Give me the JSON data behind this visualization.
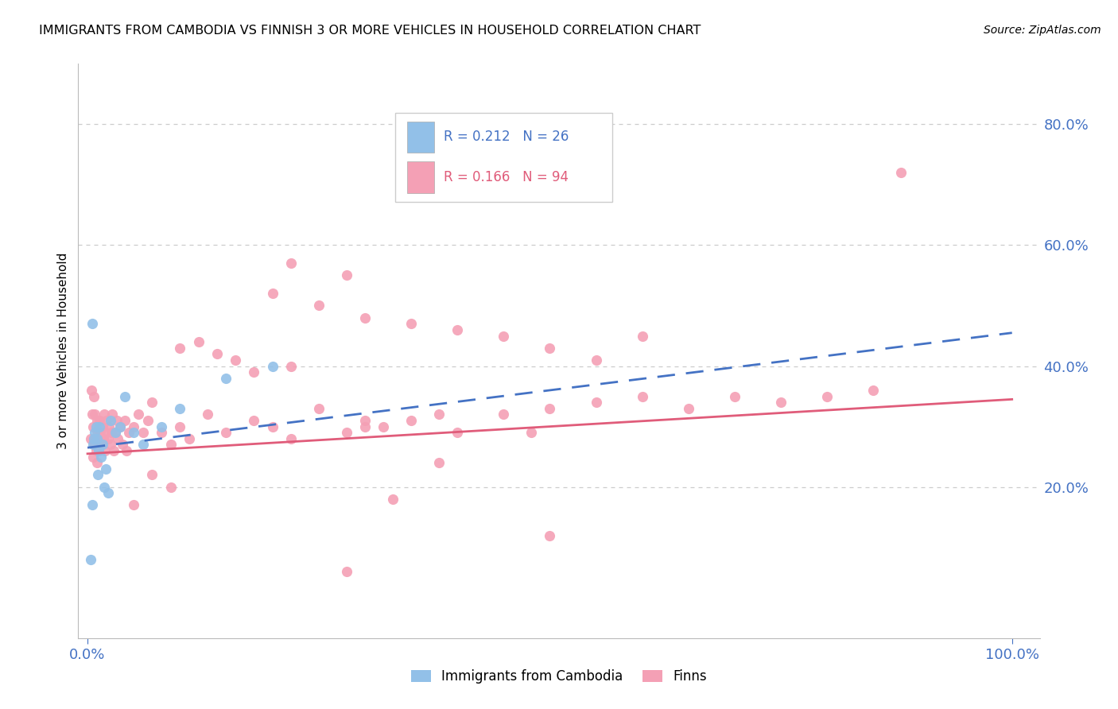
{
  "title": "IMMIGRANTS FROM CAMBODIA VS FINNISH 3 OR MORE VEHICLES IN HOUSEHOLD CORRELATION CHART",
  "source": "Source: ZipAtlas.com",
  "ylabel": "3 or more Vehicles in Household",
  "legend_label1": "Immigrants from Cambodia",
  "legend_label2": "Finns",
  "R1": 0.212,
  "N1": 26,
  "R2": 0.166,
  "N2": 94,
  "color_blue": "#92C0E8",
  "color_pink": "#F4A0B5",
  "color_blue_text": "#4472C4",
  "color_pink_text": "#E05C7A",
  "line_blue_color": "#4472C4",
  "line_pink_color": "#E05C7A",
  "tick_color": "#4472C4",
  "grid_color": "#CCCCCC",
  "background": "#FFFFFF",
  "blue_intercept": 0.265,
  "blue_slope": 0.19,
  "pink_intercept": 0.255,
  "pink_slope": 0.09,
  "blue_x": [
    0.003,
    0.005,
    0.006,
    0.007,
    0.008,
    0.009,
    0.01,
    0.011,
    0.012,
    0.013,
    0.015,
    0.016,
    0.018,
    0.02,
    0.022,
    0.025,
    0.03,
    0.035,
    0.04,
    0.05,
    0.06,
    0.08,
    0.1,
    0.15,
    0.2,
    0.005
  ],
  "blue_y": [
    0.08,
    0.47,
    0.27,
    0.28,
    0.29,
    0.3,
    0.28,
    0.22,
    0.26,
    0.3,
    0.25,
    0.27,
    0.2,
    0.23,
    0.19,
    0.31,
    0.29,
    0.3,
    0.35,
    0.29,
    0.27,
    0.3,
    0.33,
    0.38,
    0.4,
    0.17
  ],
  "pink_x": [
    0.003,
    0.004,
    0.005,
    0.006,
    0.006,
    0.007,
    0.007,
    0.008,
    0.008,
    0.009,
    0.01,
    0.01,
    0.011,
    0.012,
    0.013,
    0.014,
    0.015,
    0.016,
    0.017,
    0.018,
    0.019,
    0.02,
    0.021,
    0.022,
    0.023,
    0.025,
    0.026,
    0.027,
    0.028,
    0.03,
    0.032,
    0.033,
    0.035,
    0.038,
    0.04,
    0.042,
    0.045,
    0.05,
    0.055,
    0.06,
    0.065,
    0.07,
    0.08,
    0.09,
    0.1,
    0.11,
    0.13,
    0.15,
    0.18,
    0.2,
    0.22,
    0.25,
    0.28,
    0.3,
    0.32,
    0.35,
    0.38,
    0.4,
    0.45,
    0.48,
    0.5,
    0.55,
    0.6,
    0.65,
    0.7,
    0.75,
    0.8,
    0.85,
    0.88,
    0.2,
    0.25,
    0.3,
    0.35,
    0.4,
    0.45,
    0.5,
    0.55,
    0.6,
    0.1,
    0.12,
    0.14,
    0.16,
    0.18,
    0.22,
    0.05,
    0.07,
    0.09,
    0.28,
    0.33,
    0.28,
    0.22,
    0.38,
    0.5,
    0.3
  ],
  "pink_y": [
    0.28,
    0.36,
    0.32,
    0.3,
    0.25,
    0.28,
    0.35,
    0.27,
    0.32,
    0.26,
    0.31,
    0.24,
    0.29,
    0.28,
    0.31,
    0.29,
    0.27,
    0.3,
    0.28,
    0.32,
    0.26,
    0.29,
    0.31,
    0.28,
    0.3,
    0.27,
    0.29,
    0.32,
    0.26,
    0.29,
    0.31,
    0.28,
    0.3,
    0.27,
    0.31,
    0.26,
    0.29,
    0.3,
    0.32,
    0.29,
    0.31,
    0.34,
    0.29,
    0.27,
    0.3,
    0.28,
    0.32,
    0.29,
    0.31,
    0.3,
    0.28,
    0.33,
    0.29,
    0.31,
    0.3,
    0.31,
    0.32,
    0.29,
    0.32,
    0.29,
    0.33,
    0.34,
    0.35,
    0.33,
    0.35,
    0.34,
    0.35,
    0.36,
    0.72,
    0.52,
    0.5,
    0.48,
    0.47,
    0.46,
    0.45,
    0.43,
    0.41,
    0.45,
    0.43,
    0.44,
    0.42,
    0.41,
    0.39,
    0.4,
    0.17,
    0.22,
    0.2,
    0.06,
    0.18,
    0.55,
    0.57,
    0.24,
    0.12,
    0.3
  ]
}
